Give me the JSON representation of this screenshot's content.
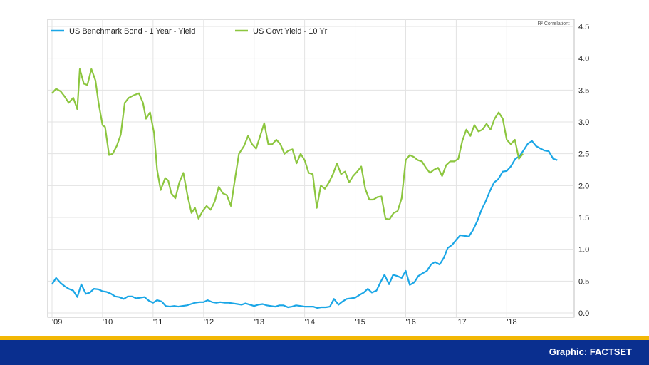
{
  "chart_data": {
    "type": "line",
    "title": "",
    "xlabel": "",
    "ylabel": "",
    "ylim": [
      0,
      4.5
    ],
    "yticks": [
      "0.0",
      "0.5",
      "1.0",
      "1.5",
      "2.0",
      "2.5",
      "3.0",
      "3.5",
      "4.0",
      "4.5"
    ],
    "x_labels": [
      {
        "label": "'09",
        "year": 2009.0
      },
      {
        "label": "'10",
        "year": 2010.0
      },
      {
        "label": "'11",
        "year": 2011.0
      },
      {
        "label": "'12",
        "year": 2012.0
      },
      {
        "label": "'13",
        "year": 2013.0
      },
      {
        "label": "'14",
        "year": 2014.0
      },
      {
        "label": "'15",
        "year": 2015.0
      },
      {
        "label": "'16",
        "year": 2016.0
      },
      {
        "label": "'17",
        "year": 2017.0
      },
      {
        "label": "'18",
        "year": 2018.0
      }
    ],
    "xlim": [
      2009.0,
      2019.25
    ],
    "grid": true,
    "legend_position": "top-left",
    "correlation_label": "R²  Correlation:",
    "series": [
      {
        "name": "US Benchmark Bond - 1 Year - Yield",
        "color": "#1aa6e6",
        "points": [
          [
            2009.0,
            0.45
          ],
          [
            2009.08,
            0.55
          ],
          [
            2009.17,
            0.47
          ],
          [
            2009.25,
            0.42
          ],
          [
            2009.33,
            0.38
          ],
          [
            2009.42,
            0.35
          ],
          [
            2009.5,
            0.25
          ],
          [
            2009.58,
            0.45
          ],
          [
            2009.67,
            0.3
          ],
          [
            2009.75,
            0.32
          ],
          [
            2009.83,
            0.38
          ],
          [
            2009.92,
            0.37
          ],
          [
            2010.0,
            0.34
          ],
          [
            2010.08,
            0.33
          ],
          [
            2010.17,
            0.3
          ],
          [
            2010.25,
            0.26
          ],
          [
            2010.33,
            0.25
          ],
          [
            2010.42,
            0.22
          ],
          [
            2010.5,
            0.26
          ],
          [
            2010.58,
            0.26
          ],
          [
            2010.67,
            0.23
          ],
          [
            2010.75,
            0.24
          ],
          [
            2010.83,
            0.25
          ],
          [
            2010.92,
            0.19
          ],
          [
            2011.0,
            0.16
          ],
          [
            2011.08,
            0.2
          ],
          [
            2011.17,
            0.18
          ],
          [
            2011.25,
            0.11
          ],
          [
            2011.33,
            0.1
          ],
          [
            2011.42,
            0.11
          ],
          [
            2011.5,
            0.1
          ],
          [
            2011.58,
            0.11
          ],
          [
            2011.67,
            0.12
          ],
          [
            2011.75,
            0.14
          ],
          [
            2011.83,
            0.16
          ],
          [
            2011.92,
            0.17
          ],
          [
            2012.0,
            0.17
          ],
          [
            2012.08,
            0.2
          ],
          [
            2012.17,
            0.17
          ],
          [
            2012.25,
            0.16
          ],
          [
            2012.33,
            0.17
          ],
          [
            2012.42,
            0.16
          ],
          [
            2012.5,
            0.16
          ],
          [
            2012.58,
            0.15
          ],
          [
            2012.67,
            0.14
          ],
          [
            2012.75,
            0.13
          ],
          [
            2012.83,
            0.15
          ],
          [
            2012.92,
            0.13
          ],
          [
            2013.0,
            0.11
          ],
          [
            2013.08,
            0.13
          ],
          [
            2013.17,
            0.14
          ],
          [
            2013.25,
            0.12
          ],
          [
            2013.33,
            0.11
          ],
          [
            2013.42,
            0.1
          ],
          [
            2013.5,
            0.12
          ],
          [
            2013.58,
            0.12
          ],
          [
            2013.67,
            0.09
          ],
          [
            2013.75,
            0.1
          ],
          [
            2013.83,
            0.12
          ],
          [
            2013.92,
            0.11
          ],
          [
            2014.0,
            0.1
          ],
          [
            2014.08,
            0.1
          ],
          [
            2014.17,
            0.1
          ],
          [
            2014.25,
            0.08
          ],
          [
            2014.33,
            0.09
          ],
          [
            2014.42,
            0.09
          ],
          [
            2014.5,
            0.1
          ],
          [
            2014.58,
            0.22
          ],
          [
            2014.67,
            0.13
          ],
          [
            2014.75,
            0.18
          ],
          [
            2014.83,
            0.22
          ],
          [
            2014.92,
            0.23
          ],
          [
            2015.0,
            0.24
          ],
          [
            2015.08,
            0.28
          ],
          [
            2015.17,
            0.32
          ],
          [
            2015.25,
            0.38
          ],
          [
            2015.33,
            0.32
          ],
          [
            2015.42,
            0.35
          ],
          [
            2015.5,
            0.48
          ],
          [
            2015.58,
            0.6
          ],
          [
            2015.67,
            0.45
          ],
          [
            2015.75,
            0.6
          ],
          [
            2015.83,
            0.58
          ],
          [
            2015.92,
            0.55
          ],
          [
            2016.0,
            0.66
          ],
          [
            2016.08,
            0.44
          ],
          [
            2016.17,
            0.48
          ],
          [
            2016.25,
            0.58
          ],
          [
            2016.33,
            0.62
          ],
          [
            2016.42,
            0.66
          ],
          [
            2016.5,
            0.76
          ],
          [
            2016.58,
            0.8
          ],
          [
            2016.67,
            0.76
          ],
          [
            2016.75,
            0.86
          ],
          [
            2016.83,
            1.02
          ],
          [
            2016.92,
            1.07
          ],
          [
            2017.0,
            1.15
          ],
          [
            2017.08,
            1.22
          ],
          [
            2017.17,
            1.21
          ],
          [
            2017.25,
            1.2
          ],
          [
            2017.33,
            1.3
          ],
          [
            2017.42,
            1.45
          ],
          [
            2017.5,
            1.62
          ],
          [
            2017.58,
            1.75
          ],
          [
            2017.67,
            1.92
          ],
          [
            2017.75,
            2.05
          ],
          [
            2017.83,
            2.1
          ],
          [
            2017.92,
            2.22
          ],
          [
            2018.0,
            2.23
          ],
          [
            2018.08,
            2.3
          ],
          [
            2018.17,
            2.42
          ],
          [
            2018.25,
            2.46
          ],
          [
            2018.33,
            2.55
          ],
          [
            2018.42,
            2.66
          ],
          [
            2018.5,
            2.7
          ],
          [
            2018.58,
            2.62
          ],
          [
            2018.67,
            2.58
          ],
          [
            2018.75,
            2.55
          ],
          [
            2018.83,
            2.54
          ],
          [
            2018.92,
            2.42
          ],
          [
            2019.0,
            2.4
          ]
        ]
      },
      {
        "name": "US Govt Yield - 10 Yr",
        "color": "#8cc63f",
        "points": [
          [
            2009.0,
            3.45
          ],
          [
            2009.08,
            3.52
          ],
          [
            2009.17,
            3.48
          ],
          [
            2009.25,
            3.4
          ],
          [
            2009.33,
            3.3
          ],
          [
            2009.42,
            3.38
          ],
          [
            2009.5,
            3.2
          ],
          [
            2009.55,
            3.83
          ],
          [
            2009.63,
            3.6
          ],
          [
            2009.7,
            3.58
          ],
          [
            2009.78,
            3.83
          ],
          [
            2009.86,
            3.65
          ],
          [
            2009.92,
            3.3
          ],
          [
            2010.0,
            2.95
          ],
          [
            2010.05,
            2.92
          ],
          [
            2010.13,
            2.48
          ],
          [
            2010.2,
            2.5
          ],
          [
            2010.28,
            2.62
          ],
          [
            2010.36,
            2.8
          ],
          [
            2010.44,
            3.3
          ],
          [
            2010.52,
            3.38
          ],
          [
            2010.62,
            3.42
          ],
          [
            2010.72,
            3.45
          ],
          [
            2010.8,
            3.3
          ],
          [
            2010.86,
            3.05
          ],
          [
            2010.94,
            3.15
          ],
          [
            2011.02,
            2.82
          ],
          [
            2011.08,
            2.25
          ],
          [
            2011.15,
            1.93
          ],
          [
            2011.24,
            2.12
          ],
          [
            2011.3,
            2.08
          ],
          [
            2011.36,
            1.88
          ],
          [
            2011.44,
            1.8
          ],
          [
            2011.52,
            2.05
          ],
          [
            2011.6,
            2.2
          ],
          [
            2011.68,
            1.85
          ],
          [
            2011.76,
            1.57
          ],
          [
            2011.83,
            1.65
          ],
          [
            2011.9,
            1.48
          ],
          [
            2011.98,
            1.6
          ],
          [
            2012.06,
            1.68
          ],
          [
            2012.14,
            1.62
          ],
          [
            2012.22,
            1.75
          ],
          [
            2012.3,
            1.98
          ],
          [
            2012.38,
            1.88
          ],
          [
            2012.46,
            1.85
          ],
          [
            2012.54,
            1.68
          ],
          [
            2012.62,
            2.1
          ],
          [
            2012.7,
            2.5
          ],
          [
            2012.8,
            2.62
          ],
          [
            2012.88,
            2.78
          ],
          [
            2012.96,
            2.65
          ],
          [
            2013.04,
            2.58
          ],
          [
            2013.12,
            2.78
          ],
          [
            2013.2,
            2.98
          ],
          [
            2013.28,
            2.65
          ],
          [
            2013.36,
            2.65
          ],
          [
            2013.44,
            2.72
          ],
          [
            2013.52,
            2.65
          ],
          [
            2013.6,
            2.5
          ],
          [
            2013.68,
            2.55
          ],
          [
            2013.76,
            2.57
          ],
          [
            2013.84,
            2.35
          ],
          [
            2013.92,
            2.5
          ],
          [
            2014.0,
            2.4
          ],
          [
            2014.08,
            2.2
          ],
          [
            2014.16,
            2.18
          ],
          [
            2014.24,
            1.65
          ],
          [
            2014.32,
            2.0
          ],
          [
            2014.4,
            1.95
          ],
          [
            2014.48,
            2.05
          ],
          [
            2014.56,
            2.18
          ],
          [
            2014.64,
            2.35
          ],
          [
            2014.72,
            2.18
          ],
          [
            2014.8,
            2.22
          ],
          [
            2014.88,
            2.05
          ],
          [
            2014.96,
            2.15
          ],
          [
            2015.04,
            2.22
          ],
          [
            2015.12,
            2.3
          ],
          [
            2015.2,
            1.95
          ],
          [
            2015.28,
            1.78
          ],
          [
            2015.36,
            1.78
          ],
          [
            2015.44,
            1.82
          ],
          [
            2015.52,
            1.83
          ],
          [
            2015.6,
            1.48
          ],
          [
            2015.68,
            1.47
          ],
          [
            2015.76,
            1.57
          ],
          [
            2015.84,
            1.6
          ],
          [
            2015.92,
            1.8
          ],
          [
            2016.0,
            2.4
          ],
          [
            2016.08,
            2.48
          ],
          [
            2016.16,
            2.45
          ],
          [
            2016.24,
            2.4
          ],
          [
            2016.32,
            2.38
          ],
          [
            2016.4,
            2.28
          ],
          [
            2016.48,
            2.2
          ],
          [
            2016.56,
            2.25
          ],
          [
            2016.64,
            2.28
          ],
          [
            2016.72,
            2.15
          ],
          [
            2016.8,
            2.32
          ],
          [
            2016.88,
            2.38
          ],
          [
            2016.96,
            2.38
          ],
          [
            2017.04,
            2.42
          ],
          [
            2017.12,
            2.7
          ],
          [
            2017.2,
            2.88
          ],
          [
            2017.28,
            2.78
          ],
          [
            2017.36,
            2.95
          ],
          [
            2017.44,
            2.85
          ],
          [
            2017.52,
            2.88
          ],
          [
            2017.6,
            2.97
          ],
          [
            2017.68,
            2.88
          ],
          [
            2017.76,
            3.05
          ],
          [
            2017.84,
            3.15
          ],
          [
            2017.92,
            3.05
          ],
          [
            2018.0,
            2.72
          ],
          [
            2018.08,
            2.65
          ],
          [
            2018.16,
            2.72
          ],
          [
            2018.24,
            2.42
          ],
          [
            2018.32,
            2.5
          ]
        ]
      }
    ]
  },
  "footer": {
    "credit": "Graphic: FACTSET",
    "gold_color": "#f2b705",
    "blue_color": "#0a2f8f"
  }
}
